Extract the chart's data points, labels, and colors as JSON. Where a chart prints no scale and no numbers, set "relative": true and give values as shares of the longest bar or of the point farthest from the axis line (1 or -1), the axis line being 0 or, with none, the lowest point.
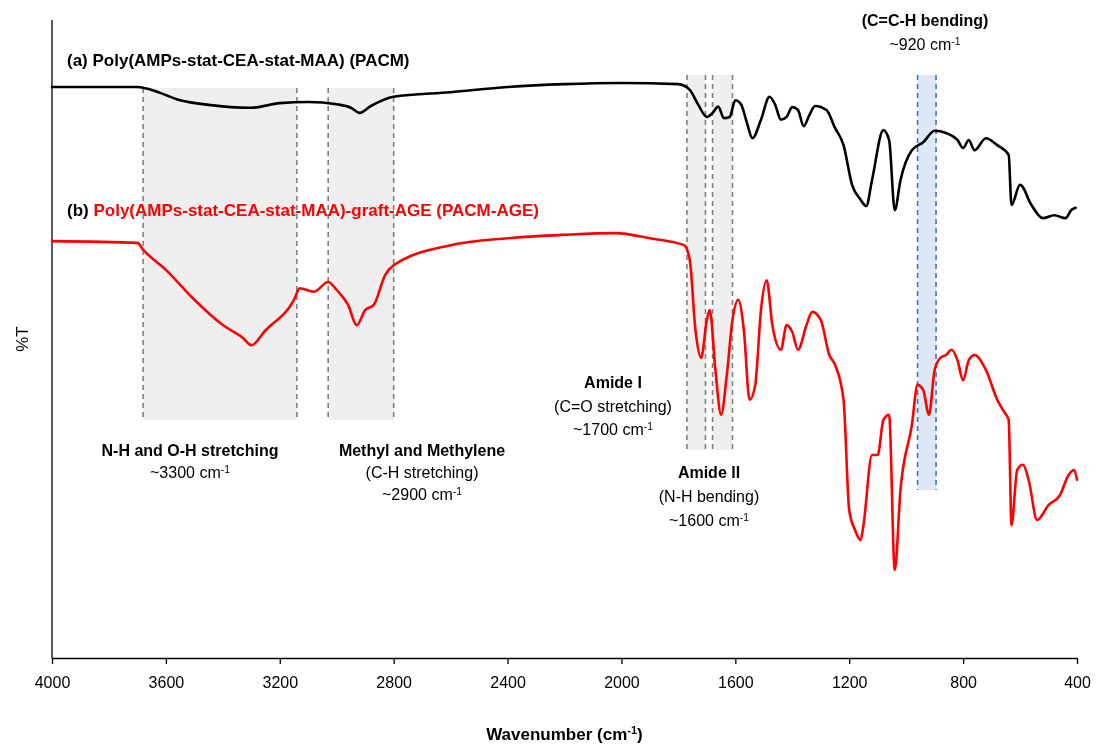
{
  "chart_data": {
    "type": "line",
    "relative": true,
    "xlabel": "Wavenumber (cm$^{-1}$)",
    "ylabel": "%T",
    "marker": "none",
    "line_style": "solid",
    "xlim": [
      4000,
      400
    ],
    "xticks": [
      4000,
      3600,
      3200,
      2800,
      2400,
      2000,
      1600,
      1200,
      800,
      400
    ],
    "series": [
      {
        "name": "(a) Poly(AMPs-stat-CEA-stat-MAA) (PACM)",
        "color": "#000000",
        "x": [
          4000,
          3700,
          3650,
          3550,
          3450,
          3300,
          3200,
          3100,
          3000,
          2950,
          2920,
          2880,
          2800,
          2600,
          2400,
          2200,
          2000,
          1800,
          1760,
          1730,
          1700,
          1680,
          1660,
          1640,
          1620,
          1600,
          1580,
          1560,
          1540,
          1510,
          1480,
          1460,
          1440,
          1420,
          1400,
          1380,
          1360,
          1340,
          1320,
          1280,
          1250,
          1220,
          1190,
          1160,
          1140,
          1120,
          1080,
          1060,
          1040,
          1020,
          980,
          940,
          900,
          860,
          820,
          800,
          780,
          760,
          720,
          680,
          640,
          630,
          600,
          560,
          520,
          480,
          440,
          420,
          405
        ],
        "values": [
          0.993,
          0.993,
          0.988,
          0.97,
          0.962,
          0.957,
          0.965,
          0.967,
          0.963,
          0.957,
          0.948,
          0.96,
          0.976,
          0.984,
          0.993,
          0.998,
          1.0,
          0.998,
          0.988,
          0.962,
          0.941,
          0.948,
          0.959,
          0.939,
          0.941,
          0.97,
          0.963,
          0.932,
          0.904,
          0.936,
          0.976,
          0.962,
          0.936,
          0.941,
          0.958,
          0.953,
          0.925,
          0.944,
          0.96,
          0.953,
          0.922,
          0.892,
          0.823,
          0.797,
          0.786,
          0.831,
          0.918,
          0.901,
          0.779,
          0.831,
          0.883,
          0.897,
          0.917,
          0.913,
          0.901,
          0.887,
          0.901,
          0.883,
          0.904,
          0.892,
          0.875,
          0.788,
          0.823,
          0.788,
          0.765,
          0.77,
          0.765,
          0.779,
          0.783
        ]
      },
      {
        "name": "(b) Poly(AMPs-stat-CEA-stat-MAA)-graft-AGE (PACM-AGE)",
        "color": "#ff0000",
        "x": [
          4000,
          3700,
          3680,
          3600,
          3500,
          3400,
          3330,
          3300,
          3250,
          3150,
          3130,
          3080,
          3030,
          3000,
          2960,
          2930,
          2900,
          2870,
          2830,
          2800,
          2600,
          2400,
          2200,
          2020,
          1900,
          1780,
          1760,
          1740,
          1720,
          1700,
          1690,
          1670,
          1650,
          1630,
          1610,
          1590,
          1570,
          1550,
          1530,
          1510,
          1490,
          1470,
          1440,
          1420,
          1400,
          1380,
          1350,
          1330,
          1300,
          1270,
          1250,
          1220,
          1200,
          1180,
          1160,
          1150,
          1120,
          1100,
          1080,
          1060,
          1040,
          1020,
          980,
          960,
          940,
          920,
          900,
          880,
          860,
          840,
          820,
          800,
          780,
          760,
          720,
          680,
          660,
          640,
          630,
          610,
          590,
          570,
          540,
          500,
          460,
          430,
          410,
          400
        ],
        "values": [
          0.725,
          0.722,
          0.71,
          0.675,
          0.623,
          0.579,
          0.557,
          0.544,
          0.57,
          0.623,
          0.643,
          0.637,
          0.654,
          0.64,
          0.614,
          0.579,
          0.605,
          0.614,
          0.666,
          0.683,
          0.718,
          0.73,
          0.736,
          0.739,
          0.73,
          0.718,
          0.692,
          0.57,
          0.522,
          0.588,
          0.605,
          0.501,
          0.423,
          0.492,
          0.588,
          0.623,
          0.57,
          0.449,
          0.475,
          0.605,
          0.657,
          0.579,
          0.536,
          0.579,
          0.567,
          0.536,
          0.579,
          0.602,
          0.588,
          0.527,
          0.51,
          0.449,
          0.257,
          0.223,
          0.205,
          0.231,
          0.353,
          0.353,
          0.414,
          0.423,
          0.153,
          0.292,
          0.405,
          0.475,
          0.466,
          0.423,
          0.501,
          0.522,
          0.527,
          0.536,
          0.518,
          0.483,
          0.518,
          0.527,
          0.501,
          0.449,
          0.431,
          0.414,
          0.231,
          0.327,
          0.336,
          0.31,
          0.24,
          0.266,
          0.283,
          0.318,
          0.327,
          0.31
        ]
      }
    ],
    "bands": [
      {
        "axis": "x",
        "from": 3680,
        "to": 3140,
        "color": "#efefef"
      },
      {
        "axis": "x",
        "from": 3030,
        "to": 2800,
        "color": "#efefef"
      },
      {
        "axis": "x",
        "from": 1770,
        "to": 1705,
        "color": "#efefef"
      },
      {
        "axis": "x",
        "from": 1680,
        "to": 1610,
        "color": "#efefef"
      },
      {
        "axis": "x",
        "from": 960,
        "to": 895,
        "color": "#dde7f5"
      }
    ],
    "ref_lines": [
      {
        "axis": "x",
        "value": 3680,
        "color": "#808080",
        "line_style": "dashed"
      },
      {
        "axis": "x",
        "value": 3140,
        "color": "#808080",
        "line_style": "dashed"
      },
      {
        "axis": "x",
        "value": 3030,
        "color": "#808080",
        "line_style": "dashed"
      },
      {
        "axis": "x",
        "value": 2800,
        "color": "#808080",
        "line_style": "dashed"
      },
      {
        "axis": "x",
        "value": 1770,
        "color": "#808080",
        "line_style": "dashed"
      },
      {
        "axis": "x",
        "value": 1705,
        "color": "#808080",
        "line_style": "dashed"
      },
      {
        "axis": "x",
        "value": 1680,
        "color": "#808080",
        "line_style": "dashed"
      },
      {
        "axis": "x",
        "value": 1610,
        "color": "#808080",
        "line_style": "dashed"
      },
      {
        "axis": "x",
        "value": 960,
        "color": "#4472c4",
        "line_style": "dashed"
      },
      {
        "axis": "x",
        "value": 895,
        "color": "#4472c4",
        "line_style": "dashed"
      }
    ],
    "annotations": [
      "N-H and O-H stretching",
      "~3300 cm$^{-1}$",
      "Methyl and Methylene",
      "(C-H stretching)",
      "~2900 cm$^{-1}$",
      "Amide I",
      "(C=O stretching)",
      "~1700 cm$^{-1}$",
      "Amide II",
      "(N-H bending)",
      "~1600 cm$^{-1}$",
      "(C=C-H bending)",
      "~920 cm$^{-1}$"
    ]
  }
}
